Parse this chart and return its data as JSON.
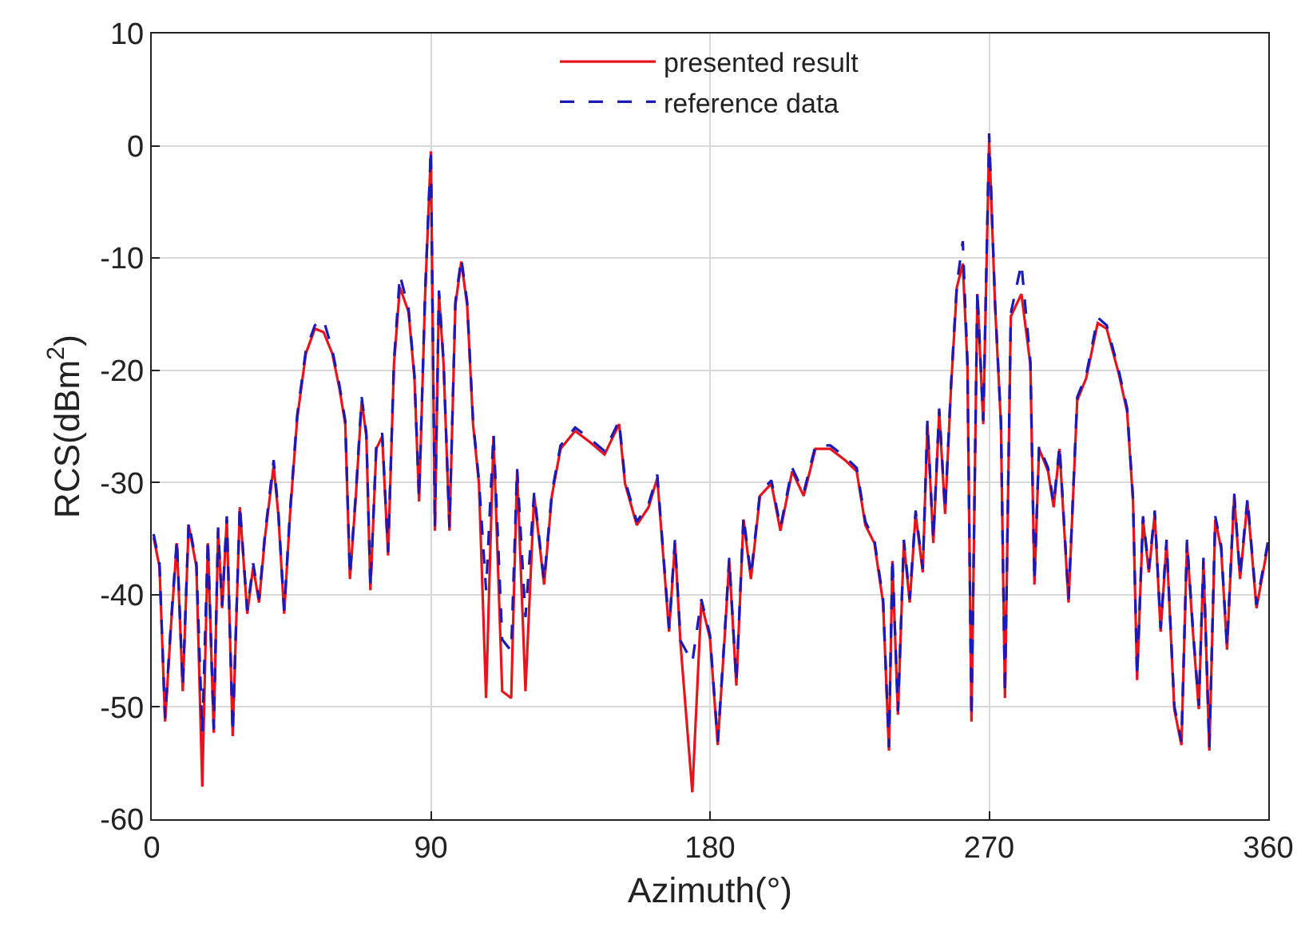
{
  "chart_data": {
    "type": "line",
    "xlabel": "Azimuth(°)",
    "ylabel": "RCS(dBm$^{2}$)",
    "xlim": [
      0,
      360
    ],
    "xticks": [
      0,
      90,
      180,
      270,
      360
    ],
    "ylim": [
      -60,
      10
    ],
    "yticks": [
      -60,
      -50,
      -40,
      -30,
      -20,
      -10,
      0,
      10
    ],
    "grid": true,
    "legend": "top",
    "marker": "none",
    "x": [
      0.6,
      2.5,
      4.3,
      6.2,
      8.1,
      10,
      11.9,
      14.4,
      16.3,
      18.1,
      20,
      21.4,
      22.7,
      24.2,
      26.1,
      28.4,
      30.8,
      32.7,
      34.6,
      36.5,
      39.3,
      40.8,
      42.7,
      44.6,
      46.9,
      49.7,
      52.6,
      55.4,
      58.2,
      60.5,
      62.4,
      63.9,
      65.8,
      67.7,
      69.2,
      70.5,
      72.4,
      74.3,
      76.2,
      78.1,
      80,
      82.8,
      84.7,
      86.2,
      88.1,
      90,
      91.3,
      92.6,
      94.1,
      96,
      97.9,
      99.8,
      101.7,
      103.6,
      105.5,
      107.8,
      110.2,
      113,
      115.9,
      117.8,
      120.5,
      123.3,
      126.5,
      129,
      131.8,
      136.5,
      141.3,
      146,
      150.7,
      152.6,
      156.4,
      160.2,
      163,
      166.8,
      168.7,
      170.5,
      174.3,
      177.2,
      180,
      182.5,
      184.7,
      186.2,
      188.5,
      190.8,
      193.2,
      196.1,
      199.8,
      202.7,
      206.5,
      210.2,
      214,
      218.8,
      223.5,
      227.3,
      230.1,
      233,
      235.8,
      237.7,
      238.8,
      240.6,
      242.5,
      244.4,
      246.3,
      248.6,
      250.1,
      252,
      253.9,
      255.8,
      257.7,
      259.6,
      261.5,
      263,
      264.3,
      266.2,
      268.1,
      270,
      271.9,
      273.8,
      275.1,
      277,
      280.4,
      283.3,
      284.6,
      286.1,
      289,
      290.8,
      292.7,
      295.6,
      298.4,
      301.3,
      305,
      307.9,
      311.7,
      314.5,
      316.4,
      317.7,
      319.6,
      321.5,
      323.4,
      325.3,
      327.2,
      329.7,
      332,
      333.8,
      335.7,
      337.6,
      339.1,
      341,
      342.9,
      344.8,
      346.7,
      349,
      350.9,
      353.3,
      356.2,
      360
    ],
    "series": [
      {
        "name": "presented result",
        "color": "#e8141b",
        "line_style": "solid",
        "values": [
          -34.9,
          -37.5,
          -51.3,
          -42.8,
          -35.4,
          -48.6,
          -33.8,
          -37.5,
          -57.1,
          -35.4,
          -52.3,
          -34.3,
          -41.2,
          -33.3,
          -52.6,
          -32.2,
          -41.7,
          -37.5,
          -40.7,
          -34.9,
          -28.5,
          -32.8,
          -41.7,
          -32.8,
          -24.3,
          -18.5,
          -16.3,
          -16.6,
          -18.5,
          -21.6,
          -24.8,
          -38.6,
          -31.3,
          -22.7,
          -25.9,
          -39.6,
          -27.0,
          -25.9,
          -36.5,
          -19.5,
          -12.6,
          -14.8,
          -20.7,
          -31.7,
          -13.7,
          -0.5,
          -34.3,
          -13.2,
          -19.5,
          -34.3,
          -14.2,
          -10.3,
          -14.2,
          -24.8,
          -30.1,
          -49.2,
          -25.9,
          -48.6,
          -49.2,
          -29.0,
          -48.6,
          -31.2,
          -39.1,
          -31.2,
          -27.0,
          -25.4,
          -26.4,
          -27.5,
          -24.8,
          -30.1,
          -33.8,
          -32.2,
          -29.6,
          -43.3,
          -35.4,
          -44.4,
          -57.6,
          -40.7,
          -43.9,
          -53.4,
          -43.9,
          -37.0,
          -48.1,
          -33.3,
          -38.6,
          -31.2,
          -30.1,
          -34.3,
          -29.0,
          -31.2,
          -27.0,
          -27.0,
          -28.0,
          -29.0,
          -33.8,
          -35.4,
          -40.7,
          -53.9,
          -37.0,
          -50.7,
          -35.4,
          -40.7,
          -32.8,
          -38.0,
          -24.8,
          -35.4,
          -23.7,
          -32.8,
          -21.6,
          -12.6,
          -10.5,
          -19.5,
          -51.3,
          -13.2,
          -24.8,
          0.5,
          -14.2,
          -24.8,
          -49.2,
          -15.2,
          -13.2,
          -19.5,
          -39.1,
          -27.0,
          -29.0,
          -32.2,
          -27.0,
          -40.7,
          -22.7,
          -20.7,
          -15.8,
          -16.3,
          -20.2,
          -23.7,
          -31.7,
          -47.6,
          -33.3,
          -38.0,
          -32.8,
          -43.3,
          -35.4,
          -50.2,
          -53.4,
          -35.4,
          -43.3,
          -50.2,
          -37.0,
          -53.9,
          -33.3,
          -35.9,
          -44.9,
          -31.2,
          -38.6,
          -31.7,
          -41.2,
          -35.4
        ]
      },
      {
        "name": "reference data",
        "color": "#1a1ab8",
        "line_style": "dashed",
        "values": [
          -34.6,
          -37.2,
          -51.0,
          -42.5,
          -35.0,
          -48.2,
          -33.5,
          -37.2,
          -52.3,
          -35.0,
          -52.0,
          -34.0,
          -41.0,
          -33.0,
          -52.3,
          -32.0,
          -41.4,
          -37.2,
          -40.4,
          -34.6,
          -28.0,
          -32.5,
          -41.4,
          -32.5,
          -24.0,
          -18.2,
          -16.0,
          -15.5,
          -18.2,
          -21.3,
          -24.5,
          -38.3,
          -31.0,
          -22.4,
          -25.6,
          -39.3,
          -26.7,
          -25.6,
          -36.2,
          -19.2,
          -11.5,
          -14.5,
          -20.4,
          -31.4,
          -13.4,
          -0.3,
          -34.0,
          -12.9,
          -19.2,
          -34.0,
          -13.9,
          -10.0,
          -13.9,
          -24.5,
          -29.8,
          -39.6,
          -25.6,
          -44.0,
          -45.0,
          -28.7,
          -42.0,
          -30.9,
          -38.8,
          -30.9,
          -26.7,
          -25.1,
          -26.1,
          -27.2,
          -24.5,
          -29.8,
          -33.5,
          -31.9,
          -29.3,
          -43.0,
          -35.1,
          -44.1,
          -46.0,
          -40.4,
          -43.6,
          -53.1,
          -43.6,
          -36.7,
          -47.8,
          -33.0,
          -38.3,
          -30.9,
          -29.8,
          -34.0,
          -28.7,
          -30.9,
          -26.7,
          -26.7,
          -27.7,
          -28.7,
          -33.5,
          -35.1,
          -40.4,
          -53.6,
          -36.7,
          -50.4,
          -35.1,
          -40.4,
          -32.5,
          -37.7,
          -24.5,
          -35.1,
          -23.4,
          -32.5,
          -21.3,
          -12.3,
          -8.5,
          -19.2,
          -51.0,
          -12.9,
          -24.5,
          1.1,
          -13.9,
          -24.5,
          -48.9,
          -14.9,
          -10.5,
          -19.2,
          -38.8,
          -26.7,
          -28.7,
          -31.9,
          -26.7,
          -40.4,
          -22.4,
          -20.4,
          -15.3,
          -16.0,
          -19.9,
          -23.4,
          -31.4,
          -47.3,
          -33.0,
          -37.7,
          -32.5,
          -43.0,
          -35.1,
          -49.9,
          -53.1,
          -35.1,
          -43.0,
          -49.9,
          -36.7,
          -53.6,
          -33.0,
          -35.6,
          -44.6,
          -30.9,
          -38.3,
          -31.4,
          -40.9,
          -35.1
        ]
      }
    ]
  }
}
